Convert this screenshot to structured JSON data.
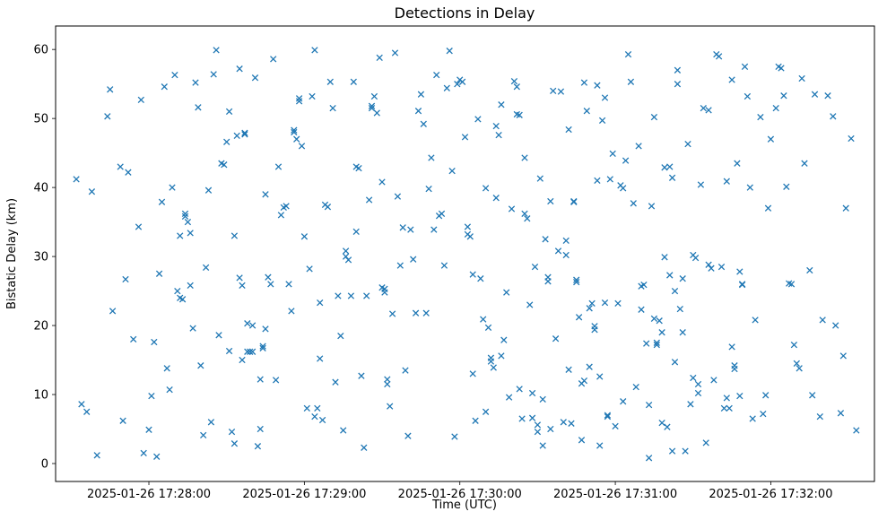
{
  "chart_data": {
    "type": "scatter",
    "title": "Detections in Delay",
    "xlabel": "Time (UTC)",
    "ylabel": "Bistatic Delay (km)",
    "marker": "x",
    "marker_color": "#1f77b4",
    "grid": false,
    "legend": "none",
    "x_encoding": "seconds after 2025-01-26 17:27:00 UTC",
    "xlim": [
      24,
      340
    ],
    "ylim": [
      -2.6,
      63.4
    ],
    "xticks": [
      {
        "t": 60,
        "label": "2025-01-26 17:28:00"
      },
      {
        "t": 120,
        "label": "2025-01-26 17:29:00"
      },
      {
        "t": 180,
        "label": "2025-01-26 17:30:00"
      },
      {
        "t": 240,
        "label": "2025-01-26 17:31:00"
      },
      {
        "t": 300,
        "label": "2025-01-26 17:32:00"
      }
    ],
    "yticks": [
      0,
      10,
      20,
      30,
      40,
      50,
      60
    ],
    "points": [
      [
        32,
        41.2
      ],
      [
        34,
        8.6
      ],
      [
        36,
        7.5
      ],
      [
        38,
        39.4
      ],
      [
        40,
        1.2
      ],
      [
        44,
        50.3
      ],
      [
        45,
        54.2
      ],
      [
        46,
        22.1
      ],
      [
        49,
        43.0
      ],
      [
        50,
        6.2
      ],
      [
        51,
        26.7
      ],
      [
        52,
        42.2
      ],
      [
        54,
        18.0
      ],
      [
        56,
        34.3
      ],
      [
        57,
        52.7
      ],
      [
        58,
        1.5
      ],
      [
        60,
        4.9
      ],
      [
        61,
        9.8
      ],
      [
        62,
        17.6
      ],
      [
        63,
        1.0
      ],
      [
        64,
        27.5
      ],
      [
        65,
        37.9
      ],
      [
        66,
        54.6
      ],
      [
        67,
        13.8
      ],
      [
        68,
        10.7
      ],
      [
        69,
        40.0
      ],
      [
        70,
        56.3
      ],
      [
        71,
        25.0
      ],
      [
        72,
        24.0
      ],
      [
        72,
        33.0
      ],
      [
        73,
        23.8
      ],
      [
        74,
        35.8
      ],
      [
        74,
        36.2
      ],
      [
        75,
        35.0
      ],
      [
        76,
        33.4
      ],
      [
        76,
        25.8
      ],
      [
        77,
        19.6
      ],
      [
        78,
        55.2
      ],
      [
        79,
        51.6
      ],
      [
        80,
        14.2
      ],
      [
        81,
        4.1
      ],
      [
        82,
        28.4
      ],
      [
        83,
        39.6
      ],
      [
        84,
        6.0
      ],
      [
        85,
        56.4
      ],
      [
        86,
        59.9
      ],
      [
        87,
        18.6
      ],
      [
        88,
        43.5
      ],
      [
        89,
        43.3
      ],
      [
        90,
        46.6
      ],
      [
        91,
        16.3
      ],
      [
        91,
        51.0
      ],
      [
        92,
        4.6
      ],
      [
        93,
        33.0
      ],
      [
        93,
        2.9
      ],
      [
        94,
        47.5
      ],
      [
        95,
        57.2
      ],
      [
        95,
        26.9
      ],
      [
        96,
        25.8
      ],
      [
        96,
        15.0
      ],
      [
        97,
        47.9
      ],
      [
        97,
        47.7
      ],
      [
        98,
        20.3
      ],
      [
        98,
        16.2
      ],
      [
        99,
        16.2
      ],
      [
        100,
        16.2
      ],
      [
        100,
        20.0
      ],
      [
        101,
        55.9
      ],
      [
        102,
        2.5
      ],
      [
        103,
        5.0
      ],
      [
        103,
        12.2
      ],
      [
        104,
        17.0
      ],
      [
        104,
        16.7
      ],
      [
        105,
        19.5
      ],
      [
        105,
        39.0
      ],
      [
        106,
        27.0
      ],
      [
        107,
        26.0
      ],
      [
        108,
        58.6
      ],
      [
        109,
        12.1
      ],
      [
        110,
        43.0
      ],
      [
        111,
        36.0
      ],
      [
        112,
        37.1
      ],
      [
        113,
        37.3
      ],
      [
        114,
        26.0
      ],
      [
        115,
        22.1
      ],
      [
        116,
        48.3
      ],
      [
        116,
        48.0
      ],
      [
        117,
        47.0
      ],
      [
        118,
        52.9
      ],
      [
        118,
        52.5
      ],
      [
        119,
        46.0
      ],
      [
        120,
        32.9
      ],
      [
        121,
        8.0
      ],
      [
        122,
        28.2
      ],
      [
        123,
        53.2
      ],
      [
        124,
        59.9
      ],
      [
        124,
        6.8
      ],
      [
        125,
        8.0
      ],
      [
        126,
        23.3
      ],
      [
        126,
        15.2
      ],
      [
        127,
        6.3
      ],
      [
        128,
        37.5
      ],
      [
        129,
        37.2
      ],
      [
        130,
        55.3
      ],
      [
        131,
        51.5
      ],
      [
        132,
        11.8
      ],
      [
        133,
        24.3
      ],
      [
        134,
        18.5
      ],
      [
        135,
        4.8
      ],
      [
        136,
        30.0
      ],
      [
        136,
        30.8
      ],
      [
        137,
        29.5
      ],
      [
        138,
        24.3
      ],
      [
        139,
        55.3
      ],
      [
        140,
        33.6
      ],
      [
        140,
        43.0
      ],
      [
        141,
        42.8
      ],
      [
        142,
        12.7
      ],
      [
        143,
        2.3
      ],
      [
        144,
        24.3
      ],
      [
        145,
        38.2
      ],
      [
        146,
        51.8
      ],
      [
        146,
        51.5
      ],
      [
        147,
        53.2
      ],
      [
        148,
        50.8
      ],
      [
        149,
        58.8
      ],
      [
        150,
        40.8
      ],
      [
        150,
        25.5
      ],
      [
        151,
        25.3
      ],
      [
        151,
        24.8
      ],
      [
        152,
        12.2
      ],
      [
        152,
        11.5
      ],
      [
        153,
        8.3
      ],
      [
        154,
        21.7
      ],
      [
        155,
        59.5
      ],
      [
        156,
        38.7
      ],
      [
        157,
        28.7
      ],
      [
        158,
        34.2
      ],
      [
        159,
        13.5
      ],
      [
        160,
        4.0
      ],
      [
        161,
        33.9
      ],
      [
        162,
        29.6
      ],
      [
        163,
        21.8
      ],
      [
        164,
        51.1
      ],
      [
        165,
        53.5
      ],
      [
        166,
        49.2
      ],
      [
        167,
        21.8
      ],
      [
        168,
        39.8
      ],
      [
        169,
        44.3
      ],
      [
        170,
        33.9
      ],
      [
        171,
        56.3
      ],
      [
        172,
        35.9
      ],
      [
        173,
        36.2
      ],
      [
        174,
        28.7
      ],
      [
        175,
        54.4
      ],
      [
        176,
        59.8
      ],
      [
        177,
        42.4
      ],
      [
        178,
        3.9
      ],
      [
        179,
        55.0
      ],
      [
        180,
        55.6
      ],
      [
        181,
        55.3
      ],
      [
        182,
        47.3
      ],
      [
        183,
        34.3
      ],
      [
        183,
        33.2
      ],
      [
        184,
        32.9
      ],
      [
        185,
        27.4
      ],
      [
        185,
        13.0
      ],
      [
        186,
        6.2
      ],
      [
        187,
        49.9
      ],
      [
        188,
        26.8
      ],
      [
        189,
        20.9
      ],
      [
        190,
        39.9
      ],
      [
        190,
        7.5
      ],
      [
        191,
        19.7
      ],
      [
        192,
        14.8
      ],
      [
        192,
        15.3
      ],
      [
        193,
        13.9
      ],
      [
        194,
        38.5
      ],
      [
        194,
        48.9
      ],
      [
        195,
        47.6
      ],
      [
        196,
        52.0
      ],
      [
        196,
        15.6
      ],
      [
        197,
        17.9
      ],
      [
        198,
        24.8
      ],
      [
        199,
        9.6
      ],
      [
        200,
        36.9
      ],
      [
        201,
        55.4
      ],
      [
        202,
        54.6
      ],
      [
        202,
        50.6
      ],
      [
        203,
        50.5
      ],
      [
        203,
        10.8
      ],
      [
        204,
        6.5
      ],
      [
        205,
        44.3
      ],
      [
        205,
        36.2
      ],
      [
        206,
        35.5
      ],
      [
        207,
        23.0
      ],
      [
        208,
        10.2
      ],
      [
        208,
        6.6
      ],
      [
        209,
        28.5
      ],
      [
        210,
        5.6
      ],
      [
        210,
        4.6
      ],
      [
        211,
        41.3
      ],
      [
        212,
        9.3
      ],
      [
        212,
        2.6
      ],
      [
        213,
        32.5
      ],
      [
        214,
        26.4
      ],
      [
        214,
        27.0
      ],
      [
        215,
        38.0
      ],
      [
        215,
        5.0
      ],
      [
        216,
        54.0
      ],
      [
        217,
        18.1
      ],
      [
        218,
        30.8
      ],
      [
        219,
        53.9
      ],
      [
        220,
        6.0
      ],
      [
        221,
        32.3
      ],
      [
        221,
        30.2
      ],
      [
        222,
        48.4
      ],
      [
        222,
        13.6
      ],
      [
        223,
        5.8
      ],
      [
        224,
        37.9
      ],
      [
        224,
        38.0
      ],
      [
        225,
        26.6
      ],
      [
        225,
        26.3
      ],
      [
        226,
        21.2
      ],
      [
        227,
        11.6
      ],
      [
        227,
        3.4
      ],
      [
        228,
        55.2
      ],
      [
        228,
        12.0
      ],
      [
        229,
        51.1
      ],
      [
        230,
        22.5
      ],
      [
        230,
        14.0
      ],
      [
        231,
        23.2
      ],
      [
        232,
        19.9
      ],
      [
        232,
        19.4
      ],
      [
        233,
        54.8
      ],
      [
        233,
        41.0
      ],
      [
        234,
        12.6
      ],
      [
        234,
        2.6
      ],
      [
        235,
        49.7
      ],
      [
        236,
        53.0
      ],
      [
        236,
        23.3
      ],
      [
        237,
        7.0
      ],
      [
        237,
        6.8
      ],
      [
        238,
        41.2
      ],
      [
        239,
        44.9
      ],
      [
        240,
        5.4
      ],
      [
        241,
        23.2
      ],
      [
        242,
        40.3
      ],
      [
        243,
        39.9
      ],
      [
        243,
        9.0
      ],
      [
        244,
        43.9
      ],
      [
        245,
        59.3
      ],
      [
        246,
        55.3
      ],
      [
        247,
        37.7
      ],
      [
        248,
        11.1
      ],
      [
        249,
        46.0
      ],
      [
        250,
        22.3
      ],
      [
        250,
        25.7
      ],
      [
        251,
        25.9
      ],
      [
        252,
        17.4
      ],
      [
        253,
        8.5
      ],
      [
        253,
        0.8
      ],
      [
        254,
        37.3
      ],
      [
        255,
        50.2
      ],
      [
        255,
        21.0
      ],
      [
        256,
        17.5
      ],
      [
        256,
        17.2
      ],
      [
        257,
        20.7
      ],
      [
        258,
        19.0
      ],
      [
        258,
        5.9
      ],
      [
        259,
        42.9
      ],
      [
        259,
        29.9
      ],
      [
        260,
        5.3
      ],
      [
        261,
        43.0
      ],
      [
        261,
        27.3
      ],
      [
        262,
        41.4
      ],
      [
        262,
        1.8
      ],
      [
        263,
        25.0
      ],
      [
        263,
        14.7
      ],
      [
        264,
        57.0
      ],
      [
        264,
        55.0
      ],
      [
        265,
        22.4
      ],
      [
        266,
        26.8
      ],
      [
        266,
        19.0
      ],
      [
        267,
        1.8
      ],
      [
        268,
        46.3
      ],
      [
        269,
        8.6
      ],
      [
        270,
        12.4
      ],
      [
        270,
        30.2
      ],
      [
        271,
        29.8
      ],
      [
        272,
        11.5
      ],
      [
        272,
        10.2
      ],
      [
        273,
        40.4
      ],
      [
        274,
        51.5
      ],
      [
        275,
        3.0
      ],
      [
        276,
        51.2
      ],
      [
        276,
        28.8
      ],
      [
        277,
        28.3
      ],
      [
        278,
        12.1
      ],
      [
        279,
        59.3
      ],
      [
        280,
        59.0
      ],
      [
        281,
        28.5
      ],
      [
        282,
        8.0
      ],
      [
        283,
        40.9
      ],
      [
        283,
        9.5
      ],
      [
        284,
        8.0
      ],
      [
        285,
        55.6
      ],
      [
        285,
        16.9
      ],
      [
        286,
        14.2
      ],
      [
        286,
        13.7
      ],
      [
        287,
        43.5
      ],
      [
        288,
        27.8
      ],
      [
        288,
        9.8
      ],
      [
        289,
        26.0
      ],
      [
        289,
        25.9
      ],
      [
        290,
        57.5
      ],
      [
        291,
        53.2
      ],
      [
        292,
        40.0
      ],
      [
        293,
        6.5
      ],
      [
        294,
        20.8
      ],
      [
        296,
        50.2
      ],
      [
        297,
        7.2
      ],
      [
        298,
        9.9
      ],
      [
        299,
        37.0
      ],
      [
        300,
        47.0
      ],
      [
        302,
        51.5
      ],
      [
        303,
        57.5
      ],
      [
        304,
        57.3
      ],
      [
        305,
        53.3
      ],
      [
        306,
        40.1
      ],
      [
        307,
        26.1
      ],
      [
        308,
        26.0
      ],
      [
        309,
        17.2
      ],
      [
        310,
        14.5
      ],
      [
        311,
        13.8
      ],
      [
        312,
        55.8
      ],
      [
        313,
        43.5
      ],
      [
        315,
        28.0
      ],
      [
        316,
        9.9
      ],
      [
        317,
        53.5
      ],
      [
        319,
        6.8
      ],
      [
        320,
        20.8
      ],
      [
        322,
        53.3
      ],
      [
        324,
        50.3
      ],
      [
        325,
        20.0
      ],
      [
        327,
        7.3
      ],
      [
        328,
        15.6
      ],
      [
        329,
        37.0
      ],
      [
        331,
        47.1
      ],
      [
        333,
        4.8
      ]
    ]
  }
}
